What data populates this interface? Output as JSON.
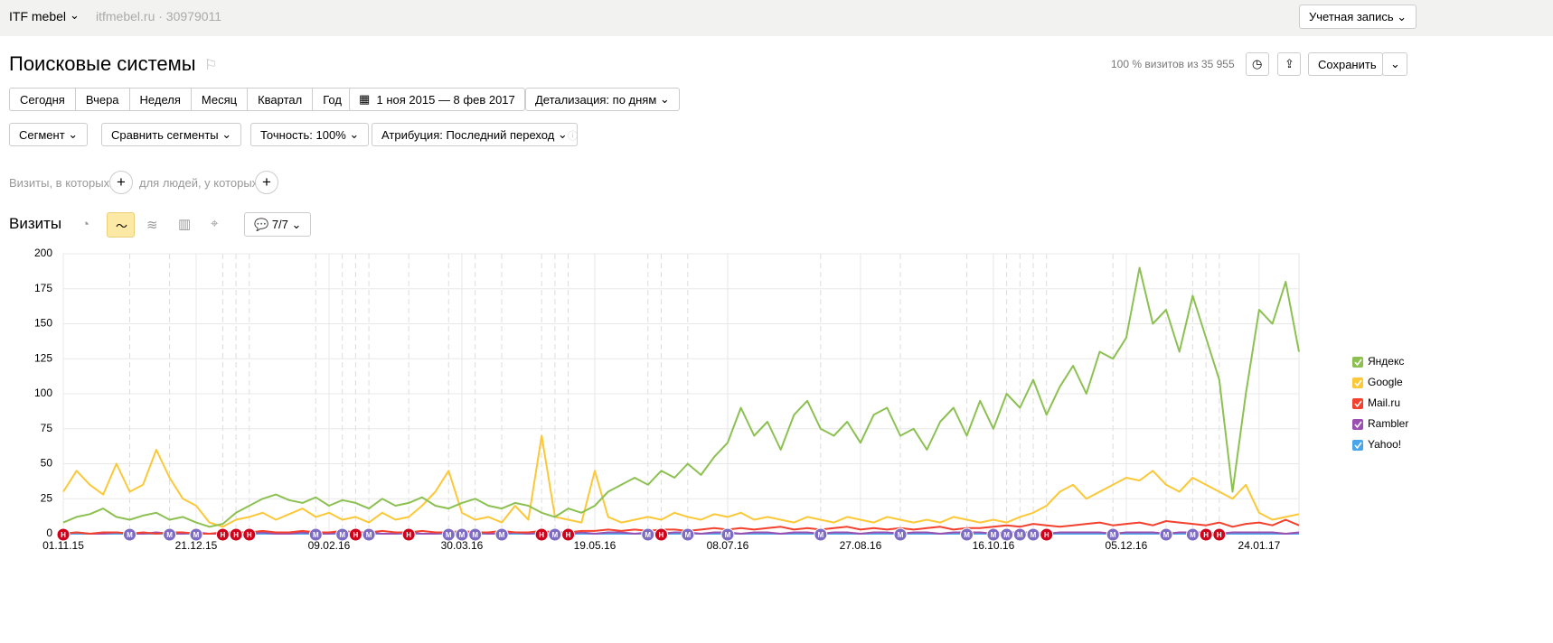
{
  "header": {
    "site": "ITF mebel",
    "domain": "itfmebel.ru · 30979011",
    "account": "Учетная запись"
  },
  "page": {
    "title": "Поисковые системы",
    "sample": "100 % визитов из 35 955",
    "save": "Сохранить",
    "periods": [
      "Сегодня",
      "Вчера",
      "Неделя",
      "Месяц",
      "Квартал",
      "Год"
    ],
    "range": "1 ноя 2015 — 8 фев 2017",
    "detail": "Детализация: по дням",
    "filters": [
      "Сегмент",
      "Сравнить сегменты",
      "Точность: 100%",
      "Атрибуция: Последний переход"
    ],
    "visits_where": "Визиты, в которых",
    "people_where": "для людей, у которых",
    "section": "Визиты",
    "notes": "7/7"
  },
  "chart_data": {
    "type": "line",
    "categories": [
      "01.11.15",
      null,
      null,
      null,
      null,
      null,
      null,
      null,
      null,
      null,
      "21.12.15",
      null,
      null,
      null,
      null,
      null,
      null,
      null,
      null,
      null,
      "09.02.16",
      null,
      null,
      null,
      null,
      null,
      null,
      null,
      null,
      null,
      "30.03.16",
      null,
      null,
      null,
      null,
      null,
      null,
      null,
      null,
      null,
      "19.05.16",
      null,
      null,
      null,
      null,
      null,
      null,
      null,
      null,
      null,
      "08.07.16",
      null,
      null,
      null,
      null,
      null,
      null,
      null,
      null,
      null,
      "27.08.16",
      null,
      null,
      null,
      null,
      null,
      null,
      null,
      null,
      null,
      "16.10.16",
      null,
      null,
      null,
      null,
      null,
      null,
      null,
      null,
      null,
      "05.12.16",
      null,
      null,
      null,
      null,
      null,
      null,
      null,
      null,
      null,
      "24.01.17",
      null,
      null,
      null
    ],
    "ylim": [
      0,
      200
    ],
    "yticks": [
      0,
      25,
      50,
      75,
      100,
      125,
      150,
      175,
      200
    ],
    "grid": true,
    "legend": "right",
    "series": [
      {
        "name": "Яндекс",
        "color": "#8cc152",
        "values": [
          8,
          12,
          14,
          18,
          12,
          10,
          13,
          15,
          10,
          12,
          8,
          5,
          7,
          15,
          20,
          25,
          28,
          24,
          22,
          26,
          20,
          24,
          22,
          18,
          25,
          20,
          22,
          26,
          20,
          18,
          22,
          25,
          20,
          18,
          22,
          20,
          15,
          12,
          18,
          15,
          20,
          30,
          35,
          40,
          35,
          45,
          40,
          50,
          42,
          55,
          65,
          90,
          70,
          80,
          60,
          85,
          95,
          75,
          70,
          80,
          65,
          85,
          90,
          70,
          75,
          60,
          80,
          90,
          70,
          95,
          75,
          100,
          90,
          110,
          85,
          105,
          120,
          100,
          130,
          125,
          140,
          190,
          150,
          160,
          130,
          170,
          140,
          110,
          30,
          100,
          160,
          150,
          180,
          130
        ]
      },
      {
        "name": "Google",
        "color": "#fcc838",
        "values": [
          30,
          45,
          35,
          28,
          50,
          30,
          35,
          60,
          40,
          25,
          20,
          8,
          5,
          10,
          12,
          15,
          10,
          14,
          18,
          12,
          15,
          10,
          12,
          8,
          15,
          10,
          12,
          20,
          30,
          45,
          15,
          10,
          12,
          8,
          20,
          10,
          70,
          12,
          10,
          8,
          45,
          12,
          8,
          10,
          12,
          10,
          15,
          12,
          10,
          14,
          12,
          15,
          10,
          12,
          10,
          8,
          12,
          10,
          8,
          12,
          10,
          8,
          12,
          10,
          8,
          10,
          8,
          12,
          10,
          8,
          10,
          8,
          12,
          15,
          20,
          30,
          35,
          25,
          30,
          35,
          40,
          38,
          45,
          35,
          30,
          40,
          35,
          30,
          25,
          35,
          15,
          10,
          12,
          14
        ]
      },
      {
        "name": "Mail.ru",
        "color": "#f4412d",
        "values": [
          0,
          1,
          0,
          1,
          1,
          0,
          1,
          0,
          1,
          1,
          0,
          0,
          1,
          1,
          1,
          2,
          1,
          1,
          2,
          1,
          1,
          2,
          1,
          1,
          2,
          1,
          1,
          2,
          1,
          1,
          2,
          1,
          1,
          2,
          1,
          1,
          2,
          1,
          1,
          2,
          2,
          3,
          2,
          3,
          2,
          3,
          3,
          2,
          3,
          4,
          3,
          4,
          3,
          4,
          5,
          3,
          4,
          3,
          4,
          5,
          3,
          4,
          3,
          4,
          3,
          4,
          5,
          3,
          4,
          4,
          5,
          6,
          5,
          7,
          6,
          5,
          6,
          7,
          8,
          6,
          7,
          8,
          6,
          9,
          8,
          7,
          6,
          8,
          5,
          7,
          8,
          6,
          10,
          6
        ]
      },
      {
        "name": "Rambler",
        "color": "#9b4fb0",
        "values": [
          0,
          1,
          0,
          0,
          1,
          0,
          0,
          1,
          0,
          0,
          1,
          0,
          0,
          1,
          0,
          1,
          0,
          0,
          1,
          0,
          0,
          1,
          0,
          1,
          0,
          0,
          1,
          0,
          0,
          1,
          0,
          1,
          0,
          0,
          1,
          0,
          1,
          0,
          0,
          1,
          0,
          1,
          1,
          0,
          1,
          0,
          1,
          1,
          0,
          1,
          1,
          0,
          1,
          1,
          0,
          1,
          1,
          0,
          1,
          1,
          0,
          1,
          1,
          0,
          1,
          1,
          0,
          1,
          1,
          1,
          0,
          1,
          1,
          1,
          0,
          1,
          1,
          1,
          1,
          0,
          1,
          1,
          1,
          0,
          1,
          1,
          1,
          0,
          1,
          1,
          1,
          1,
          0,
          1
        ]
      },
      {
        "name": "Yahoo!",
        "color": "#49a6ea",
        "values": [
          0,
          0,
          0,
          0,
          0,
          0,
          0,
          0,
          0,
          0,
          0,
          0,
          0,
          0,
          0,
          0,
          0,
          0,
          0,
          0,
          0,
          0,
          0,
          0,
          0,
          0,
          0,
          0,
          0,
          0,
          0,
          0,
          0,
          0,
          0,
          0,
          0,
          0,
          0,
          0,
          0,
          0,
          0,
          0,
          0,
          0,
          0,
          0,
          0,
          0,
          0,
          0,
          0,
          0,
          0,
          0,
          0,
          0,
          0,
          0,
          0,
          0,
          0,
          0,
          0,
          0,
          0,
          0,
          0,
          0,
          0,
          0,
          0,
          0,
          0,
          0,
          0,
          0,
          0,
          0,
          0,
          0,
          0,
          0,
          0,
          0,
          0,
          0,
          0,
          0,
          0,
          0,
          0,
          0
        ]
      }
    ],
    "annotations": [
      {
        "index": 0,
        "label": "Н",
        "color": "#d0021b"
      },
      {
        "index": 5,
        "label": "М",
        "color": "#7e6bc4"
      },
      {
        "index": 8,
        "label": "М",
        "color": "#7e6bc4"
      },
      {
        "index": 10,
        "label": "М",
        "color": "#7e6bc4"
      },
      {
        "index": 12,
        "label": "Н",
        "color": "#d0021b"
      },
      {
        "index": 13,
        "label": "Н",
        "color": "#d0021b"
      },
      {
        "index": 14,
        "label": "Н",
        "color": "#d0021b"
      },
      {
        "index": 19,
        "label": "М",
        "color": "#7e6bc4"
      },
      {
        "index": 21,
        "label": "М",
        "color": "#7e6bc4"
      },
      {
        "index": 22,
        "label": "Н",
        "color": "#d0021b"
      },
      {
        "index": 23,
        "label": "М",
        "color": "#7e6bc4"
      },
      {
        "index": 26,
        "label": "Н",
        "color": "#d0021b"
      },
      {
        "index": 29,
        "label": "М",
        "color": "#7e6bc4"
      },
      {
        "index": 30,
        "label": "М",
        "color": "#7e6bc4"
      },
      {
        "index": 31,
        "label": "М",
        "color": "#7e6bc4"
      },
      {
        "index": 33,
        "label": "М",
        "color": "#7e6bc4"
      },
      {
        "index": 36,
        "label": "Н",
        "color": "#d0021b"
      },
      {
        "index": 37,
        "label": "М",
        "color": "#7e6bc4"
      },
      {
        "index": 38,
        "label": "Н",
        "color": "#d0021b"
      },
      {
        "index": 44,
        "label": "М",
        "color": "#7e6bc4"
      },
      {
        "index": 45,
        "label": "Н",
        "color": "#d0021b"
      },
      {
        "index": 47,
        "label": "М",
        "color": "#7e6bc4"
      },
      {
        "index": 50,
        "label": "М",
        "color": "#7e6bc4"
      },
      {
        "index": 57,
        "label": "М",
        "color": "#7e6bc4"
      },
      {
        "index": 63,
        "label": "М",
        "color": "#7e6bc4"
      },
      {
        "index": 68,
        "label": "М",
        "color": "#7e6bc4"
      },
      {
        "index": 70,
        "label": "М",
        "color": "#7e6bc4"
      },
      {
        "index": 71,
        "label": "М",
        "color": "#7e6bc4"
      },
      {
        "index": 72,
        "label": "М",
        "color": "#7e6bc4"
      },
      {
        "index": 73,
        "label": "М",
        "color": "#7e6bc4"
      },
      {
        "index": 74,
        "label": "Н",
        "color": "#d0021b"
      },
      {
        "index": 79,
        "label": "М",
        "color": "#7e6bc4"
      },
      {
        "index": 83,
        "label": "М",
        "color": "#7e6bc4"
      },
      {
        "index": 85,
        "label": "М",
        "color": "#7e6bc4"
      },
      {
        "index": 86,
        "label": "Н",
        "color": "#d0021b"
      },
      {
        "index": 87,
        "label": "Н",
        "color": "#d0021b"
      }
    ]
  }
}
